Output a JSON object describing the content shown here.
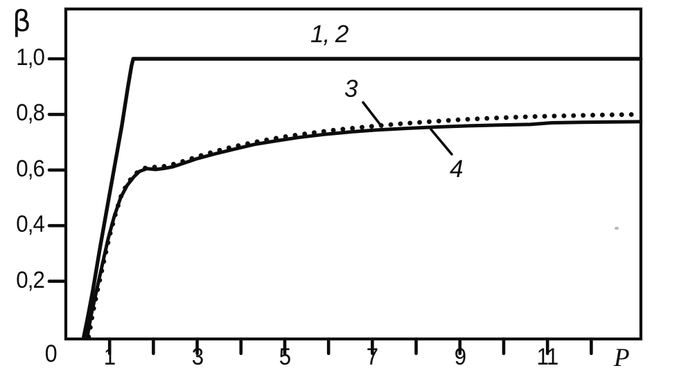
{
  "colors": {
    "ink": "#0c0c0c",
    "background": "#ffffff",
    "artifact": "#b3aeae"
  },
  "chart_data": {
    "type": "line",
    "title": "",
    "xlabel": "P",
    "ylabel": "β",
    "xlim": [
      0,
      13.13
    ],
    "ylim": [
      0,
      1.18
    ],
    "grid": false,
    "legend_position": "none",
    "x_axis": {
      "origin_label": "0",
      "ticks": [
        {
          "v": 1,
          "label": "1"
        },
        {
          "v": 2,
          "label": ""
        },
        {
          "v": 3,
          "label": "3"
        },
        {
          "v": 4,
          "label": ""
        },
        {
          "v": 5,
          "label": "5"
        },
        {
          "v": 6,
          "label": ""
        },
        {
          "v": 7,
          "label": "7"
        },
        {
          "v": 8,
          "label": ""
        },
        {
          "v": 9,
          "label": "9"
        },
        {
          "v": 10,
          "label": ""
        },
        {
          "v": 11,
          "label": "11"
        },
        {
          "v": 12,
          "label": ""
        }
      ]
    },
    "y_axis": {
      "ticks": [
        {
          "v": 0.2,
          "label": "0,2"
        },
        {
          "v": 0.4,
          "label": "0,4"
        },
        {
          "v": 0.6,
          "label": "0,6"
        },
        {
          "v": 0.8,
          "label": "0,8"
        },
        {
          "v": 1.0,
          "label": "1,0"
        }
      ]
    },
    "series": [
      {
        "name": "curves-1-and-2",
        "label": "1, 2",
        "style": "solid",
        "points": [
          [
            0.41,
            0
          ],
          [
            0.5,
            0.07
          ],
          [
            0.62,
            0.17
          ],
          [
            0.78,
            0.32
          ],
          [
            0.95,
            0.47
          ],
          [
            1.12,
            0.62
          ],
          [
            1.28,
            0.76
          ],
          [
            1.42,
            0.9
          ],
          [
            1.5,
            0.975
          ],
          [
            1.54,
            1.0
          ],
          [
            13.13,
            1.0
          ]
        ]
      },
      {
        "name": "curve-3",
        "label": "3",
        "style": "dotted",
        "points": [
          [
            0.52,
            0
          ],
          [
            0.62,
            0.09
          ],
          [
            0.74,
            0.18
          ],
          [
            0.88,
            0.28
          ],
          [
            1.01,
            0.37
          ],
          [
            1.14,
            0.445
          ],
          [
            1.28,
            0.515
          ],
          [
            1.43,
            0.557
          ],
          [
            1.58,
            0.585
          ],
          [
            1.72,
            0.602
          ],
          [
            1.9,
            0.612
          ],
          [
            2.1,
            0.61
          ],
          [
            2.3,
            0.615
          ],
          [
            2.55,
            0.625
          ],
          [
            2.85,
            0.64
          ],
          [
            3.2,
            0.658
          ],
          [
            3.6,
            0.675
          ],
          [
            4.0,
            0.69
          ],
          [
            4.5,
            0.706
          ],
          [
            5.0,
            0.72
          ],
          [
            5.6,
            0.733
          ],
          [
            6.2,
            0.745
          ],
          [
            6.9,
            0.756
          ],
          [
            7.6,
            0.766
          ],
          [
            8.3,
            0.774
          ],
          [
            9.0,
            0.781
          ],
          [
            9.8,
            0.787
          ],
          [
            10.6,
            0.792
          ],
          [
            11.4,
            0.795
          ],
          [
            12.2,
            0.798
          ],
          [
            13.1,
            0.8
          ]
        ]
      },
      {
        "name": "curve-4",
        "label": "4",
        "style": "solid",
        "points": [
          [
            0.49,
            0
          ],
          [
            0.58,
            0.08
          ],
          [
            0.7,
            0.165
          ],
          [
            0.84,
            0.265
          ],
          [
            0.97,
            0.355
          ],
          [
            1.1,
            0.43
          ],
          [
            1.25,
            0.5
          ],
          [
            1.4,
            0.545
          ],
          [
            1.55,
            0.575
          ],
          [
            1.68,
            0.595
          ],
          [
            1.85,
            0.605
          ],
          [
            2.05,
            0.602
          ],
          [
            2.25,
            0.606
          ],
          [
            2.45,
            0.612
          ],
          [
            2.7,
            0.625
          ],
          [
            3.0,
            0.641
          ],
          [
            3.4,
            0.658
          ],
          [
            3.85,
            0.675
          ],
          [
            4.3,
            0.692
          ],
          [
            4.8,
            0.705
          ],
          [
            5.3,
            0.717
          ],
          [
            5.9,
            0.728
          ],
          [
            6.5,
            0.737
          ],
          [
            7.1,
            0.744
          ],
          [
            7.8,
            0.75
          ],
          [
            8.5,
            0.755
          ],
          [
            9.2,
            0.759
          ],
          [
            9.9,
            0.762
          ],
          [
            10.6,
            0.764
          ],
          [
            11.1,
            0.77
          ],
          [
            11.8,
            0.772
          ],
          [
            12.5,
            0.773
          ],
          [
            13.13,
            0.774
          ]
        ]
      }
    ],
    "annotations": [
      {
        "id": "label-curves-1-2",
        "text": "1, 2",
        "target": "curves 1 and 2 plateau at β = 1.0"
      },
      {
        "id": "label-curve-3",
        "text": "3",
        "target": "dotted curve",
        "leader": true
      },
      {
        "id": "label-curve-4",
        "text": "4",
        "target": "lower solid curve",
        "leader": true
      }
    ]
  }
}
